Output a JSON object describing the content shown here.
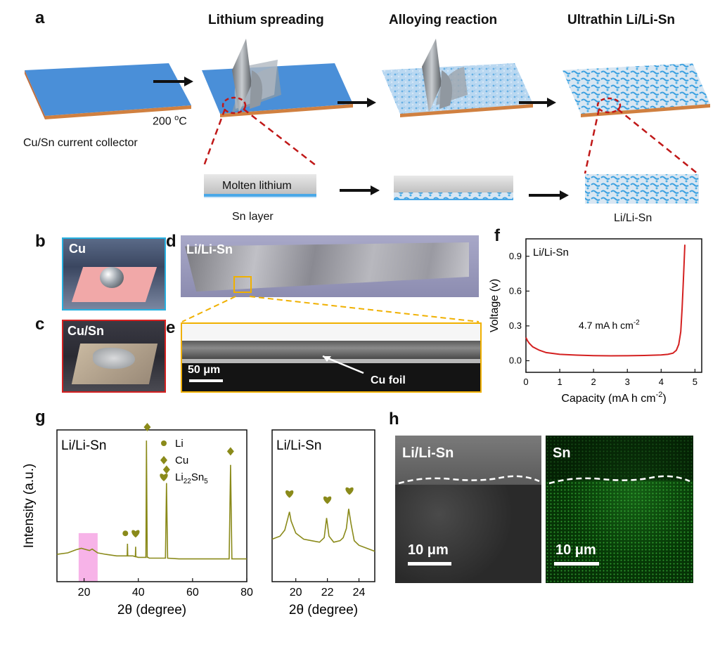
{
  "panels": {
    "a": "a",
    "b": "b",
    "c": "c",
    "d": "d",
    "e": "e",
    "f": "f",
    "g": "g",
    "h": "h"
  },
  "a": {
    "step1": "Lithium spreading",
    "step2": "Alloying reaction",
    "step3": "Ultrathin Li/Li-Sn",
    "substrate_caption": "Cu/Sn current collector",
    "temp_main": "200 ",
    "temp_sup": "o",
    "temp_unit": "C",
    "molten_label": "Molten lithium",
    "sn_layer_caption": "Sn layer",
    "alloy_caption": "Li/Li-Sn"
  },
  "b": {
    "label": "Cu"
  },
  "c": {
    "label": "Cu/Sn"
  },
  "d": {
    "label": "Li/Li-Sn"
  },
  "e": {
    "scale": "50 μm",
    "arrow_label": "Cu foil"
  },
  "h": {
    "left_label": "Li/Li-Sn",
    "right_label": "Sn",
    "scale_left": "10 μm",
    "scale_right": "10 μm"
  },
  "colors": {
    "blue": "#4a8fd8",
    "red": "#d42020",
    "olive": "#8a8a1a",
    "gold": "#f0b000",
    "pink": "#f7b3e8",
    "green": "#3fbf3f",
    "cyan": "#26b0e0"
  },
  "chart_data": [
    {
      "id": "f",
      "type": "line",
      "inset_label": "Li/Li-Sn",
      "annotation_main": "4.7 mA h cm",
      "annotation_sup": "-2",
      "xlabel_main": "Capacity (mA h cm",
      "xlabel_sup": "-2",
      "xlabel_end": ")",
      "ylabel": "Voltage (v)",
      "xlim": [
        0,
        5.2
      ],
      "ylim": [
        -0.1,
        1.05
      ],
      "xticks": [
        0,
        1,
        2,
        3,
        4,
        5
      ],
      "yticks": [
        0.0,
        0.3,
        0.6,
        0.9
      ],
      "ytick_labels": [
        "0.0",
        "0.3",
        "0.6",
        "0.9"
      ],
      "series": [
        {
          "color": "#d42020",
          "x": [
            0,
            0.05,
            0.1,
            0.2,
            0.4,
            0.6,
            1.0,
            1.5,
            2.0,
            2.5,
            3.0,
            3.5,
            4.0,
            4.2,
            4.35,
            4.45,
            4.52,
            4.58,
            4.62,
            4.65,
            4.68,
            4.7
          ],
          "y": [
            0.2,
            0.17,
            0.15,
            0.12,
            0.09,
            0.07,
            0.055,
            0.048,
            0.044,
            0.042,
            0.043,
            0.045,
            0.05,
            0.055,
            0.065,
            0.09,
            0.14,
            0.25,
            0.45,
            0.65,
            0.85,
            1.0
          ]
        }
      ]
    },
    {
      "id": "g1",
      "type": "line",
      "inset_label": "Li/Li-Sn",
      "xlabel": "2θ (degree)",
      "ylabel": "Intensity (a.u.)",
      "xlim": [
        10,
        80
      ],
      "ylim": [
        0,
        100
      ],
      "xticks": [
        20,
        40,
        60,
        80
      ],
      "highlight_x": [
        18,
        25
      ],
      "legend": [
        {
          "marker": "circle",
          "label": "Li"
        },
        {
          "marker": "diamond",
          "label": "Cu"
        },
        {
          "marker": "heart",
          "label_main": "Li",
          "label_sub1": "22",
          "label_mid": "Sn",
          "label_sub2": "5"
        }
      ],
      "series": [
        {
          "color": "#8a8a1a",
          "x": [
            10,
            14,
            17,
            19,
            21,
            22,
            23,
            25,
            28,
            32,
            35.9,
            36.0,
            36.1,
            38,
            38.9,
            39.0,
            39.1,
            40,
            42.8,
            43.0,
            43.3,
            43.6,
            44,
            48,
            50.0,
            50.4,
            50.8,
            55,
            60,
            65,
            70,
            73.5,
            74.0,
            74.5,
            78,
            80
          ],
          "y": [
            18,
            19,
            21,
            22,
            21,
            20.5,
            21.5,
            19,
            18,
            17,
            17,
            25,
            17,
            17,
            16.5,
            23,
            16.5,
            16,
            16,
            93,
            16,
            16,
            15.5,
            15.5,
            15.5,
            65,
            15.5,
            15,
            15,
            15,
            15,
            15,
            77,
            15,
            15,
            15
          ]
        }
      ],
      "markers": [
        {
          "marker": "circle",
          "x": 36
        },
        {
          "marker": "heart",
          "x": 39
        },
        {
          "marker": "diamond",
          "x": 43.3
        },
        {
          "marker": "diamond",
          "x": 50.4
        },
        {
          "marker": "diamond",
          "x": 74.0
        }
      ]
    },
    {
      "id": "g2",
      "type": "line",
      "inset_label": "Li/Li-Sn",
      "xlabel": "2θ (degree)",
      "xlim": [
        18.5,
        25
      ],
      "ylim": [
        0,
        100
      ],
      "xticks": [
        20,
        22,
        24
      ],
      "series": [
        {
          "color": "#8a8a1a",
          "x": [
            18.5,
            19.0,
            19.3,
            19.5,
            19.6,
            19.7,
            20.0,
            20.5,
            21.0,
            21.5,
            21.8,
            21.95,
            22.1,
            22.4,
            22.8,
            23.0,
            23.2,
            23.35,
            23.5,
            23.7,
            24.0,
            24.5,
            25.0
          ],
          "y": [
            28,
            30,
            34,
            42,
            46,
            40,
            32,
            28,
            27,
            26,
            29,
            42,
            30,
            26,
            27,
            29,
            35,
            48,
            38,
            27,
            24,
            22,
            20
          ]
        }
      ],
      "markers": [
        {
          "marker": "heart",
          "x": 19.6
        },
        {
          "marker": "heart",
          "x": 22.0
        },
        {
          "marker": "heart",
          "x": 23.4
        }
      ]
    }
  ]
}
